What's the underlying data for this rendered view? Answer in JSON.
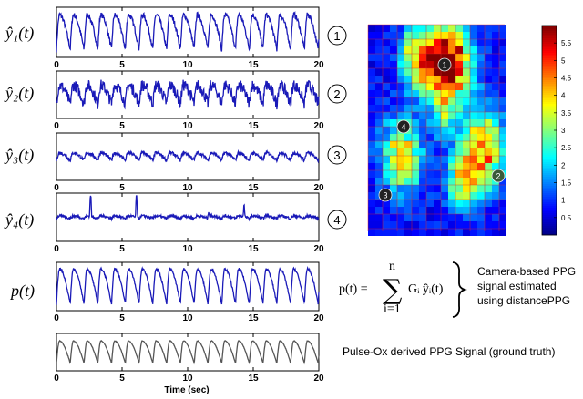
{
  "chart_data": [
    {
      "type": "line",
      "label": "y1",
      "circle": "1",
      "xlim": [
        0,
        20
      ],
      "xticks": [
        "0",
        "5",
        "10",
        "15",
        "20"
      ],
      "color": "#1a1ab8",
      "period": 1.05,
      "amp": 0.78,
      "noise": 0.12,
      "spikes": []
    },
    {
      "type": "line",
      "label": "y2",
      "circle": "2",
      "xlim": [
        0,
        20
      ],
      "xticks": [
        "0",
        "5",
        "10",
        "15",
        "20"
      ],
      "color": "#1a1ab8",
      "period": 1.05,
      "amp": 0.45,
      "noise": 0.28,
      "spikes": []
    },
    {
      "type": "line",
      "label": "y3",
      "circle": "3",
      "xlim": [
        0,
        20
      ],
      "xticks": [
        "0",
        "5",
        "10",
        "15",
        "20"
      ],
      "color": "#1a1ab8",
      "period": 1.05,
      "amp": 0.18,
      "noise": 0.08,
      "spikes": []
    },
    {
      "type": "line",
      "label": "y4",
      "circle": "4",
      "xlim": [
        0,
        20
      ],
      "xticks": [
        "0",
        "5",
        "10",
        "15",
        "20"
      ],
      "color": "#1a1ab8",
      "period": 1.05,
      "amp": 0.06,
      "noise": 0.06,
      "spikes": [
        [
          2.6,
          0.95
        ],
        [
          6.1,
          1.0
        ],
        [
          14.3,
          0.45
        ],
        [
          11.6,
          0.22
        ]
      ]
    },
    {
      "type": "line",
      "label": "p",
      "circle": "",
      "xlim": [
        0,
        20
      ],
      "xticks": [
        "0",
        "5",
        "10",
        "15",
        "20"
      ],
      "color": "#1a1ab8",
      "period": 1.05,
      "amp": 0.82,
      "noise": 0.05,
      "spikes": []
    },
    {
      "type": "line",
      "label": "",
      "circle": "",
      "xlim": [
        0,
        20
      ],
      "xticks": [
        "0",
        "5",
        "10",
        "15",
        "20"
      ],
      "color": "#555555",
      "period": 1.05,
      "amp": 0.7,
      "noise": 0.02,
      "spikes": [],
      "xlabel": "Time (sec)"
    }
  ],
  "labels": {
    "y1": "ŷ₁(t)",
    "y2": "ŷ₂(t)",
    "y3": "ŷ₃(t)",
    "y4": "ŷ₄(t)",
    "p": "p(t)"
  },
  "equation": {
    "lhs": "p(t) =",
    "sum_top": "n",
    "sum_bottom": "i=1",
    "term": "Gᵢ ŷᵢ(t)"
  },
  "annotations": {
    "camera_line1": "Camera-based PPG",
    "camera_line2": "signal estimated",
    "camera_line3": "using distancePPG",
    "pulseox": "Pulse-Ox derived PPG Signal (ground truth)",
    "xlabel": "Time (sec)"
  },
  "heatmap": {
    "markers": [
      "1",
      "2",
      "3",
      "4"
    ],
    "colorbar_ticks": [
      "5.5",
      "5",
      "4.5",
      "4",
      "3.5",
      "3",
      "2.5",
      "2",
      "1.5",
      "1",
      "0.5"
    ],
    "colorbar_range": [
      0,
      6
    ],
    "colormap": "jet"
  }
}
